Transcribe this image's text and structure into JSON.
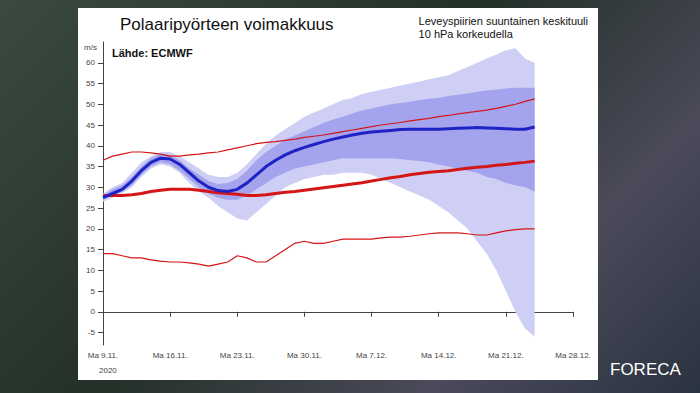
{
  "chart_data": {
    "type": "line",
    "title": "Polaaripyörteen voimakkuus",
    "subtitle": "Leveyspiirien suuntainen keskituuli\n10 hPa korkeudella",
    "annotations": {
      "source": "Lähde: ECMWF",
      "year": "2020",
      "logo": "FORECA"
    },
    "ylabel": "m/s",
    "categories": [
      "Ma 9.11.",
      null,
      null,
      null,
      null,
      null,
      null,
      "Ma 16.11.",
      null,
      null,
      null,
      null,
      null,
      null,
      "Ma 23.11.",
      null,
      null,
      null,
      null,
      null,
      null,
      "Ma 30.11.",
      null,
      null,
      null,
      null,
      null,
      null,
      "Ma 7.12.",
      null,
      null,
      null,
      null,
      null,
      null,
      "Ma 14.12.",
      null,
      null,
      null,
      null,
      null,
      null,
      "Ma 21.12.",
      null,
      null,
      null,
      null,
      null,
      null,
      "Ma 28.12."
    ],
    "ylim": [
      -8,
      65
    ],
    "yticks": [
      -5,
      0,
      5,
      10,
      15,
      20,
      25,
      30,
      35,
      40,
      45,
      50,
      55,
      60
    ],
    "grid": false,
    "series": [
      {
        "type": "band",
        "color": "#cfcff6",
        "lower": [
          26.5,
          27.5,
          28.5,
          30,
          32.5,
          34.5,
          35.5,
          35,
          33.5,
          31,
          29,
          27.5,
          25.5,
          24,
          22.5,
          22,
          24,
          26,
          28,
          30,
          31,
          32,
          32.5,
          33,
          33,
          33.5,
          33.5,
          33.5,
          33,
          32,
          31,
          30,
          29,
          28,
          27,
          25.5,
          24,
          22,
          20,
          17,
          14,
          10,
          5,
          0,
          -4,
          -6,
          null,
          null,
          null,
          null
        ],
        "upper": [
          28.5,
          30,
          31,
          33.5,
          36,
          37.5,
          38.5,
          38.5,
          37.5,
          36,
          34.5,
          33,
          32.5,
          32.5,
          33.5,
          35.5,
          38,
          40.5,
          42.5,
          44,
          45.5,
          47,
          48,
          49,
          50,
          51,
          51.5,
          52.5,
          53,
          53.5,
          54,
          54.5,
          55,
          55.5,
          56,
          56.5,
          57,
          58,
          59,
          60,
          61,
          62,
          63,
          63.5,
          61,
          60,
          null,
          null,
          null,
          null
        ]
      },
      {
        "type": "band",
        "color": "#a3a3ee",
        "lower": [
          27,
          28,
          29,
          30.5,
          33,
          35,
          36,
          35.5,
          34,
          32,
          30,
          28.5,
          27.5,
          27,
          27,
          28,
          29.5,
          31,
          32.5,
          33.5,
          34.5,
          35,
          35.5,
          36,
          36.5,
          37,
          37,
          37,
          37,
          37,
          37,
          36.8,
          36.5,
          36.3,
          36,
          35.5,
          35,
          34.5,
          34,
          33.5,
          32.5,
          32,
          31,
          30.5,
          30,
          29,
          null,
          null,
          null,
          null
        ],
        "upper": [
          28,
          29.5,
          30.5,
          32.5,
          35,
          37,
          38,
          37.8,
          36.5,
          34.5,
          33,
          31.5,
          30.8,
          31,
          32,
          34,
          36.5,
          38.5,
          40,
          41.5,
          42.5,
          43.5,
          44.5,
          45.5,
          46.3,
          47,
          47.8,
          48.5,
          49,
          49.5,
          50,
          50.3,
          50.6,
          51,
          51.3,
          51.5,
          52,
          52.3,
          52.6,
          53,
          53.3,
          53.5,
          53.8,
          54,
          54,
          54,
          null,
          null,
          null,
          null
        ]
      },
      {
        "type": "line",
        "color": "#d41616",
        "line_style": "thin",
        "values": [
          36.5,
          37.5,
          38,
          38.5,
          38.5,
          38.3,
          38,
          37.5,
          37.5,
          37.8,
          38,
          38.3,
          38.5,
          39,
          39.5,
          40,
          40.5,
          40.8,
          41,
          41.3,
          41.6,
          42,
          42.3,
          42.6,
          43,
          43.4,
          43.8,
          44.2,
          44.6,
          45,
          45.3,
          45.6,
          46,
          46.3,
          46.6,
          47,
          47.3,
          47.7,
          48,
          48.3,
          48.6,
          49,
          49.5,
          50,
          50.7,
          51.3,
          null,
          null,
          null,
          null
        ]
      },
      {
        "type": "line",
        "color": "#d41616",
        "line_style": "thin",
        "values": [
          14,
          14,
          13.5,
          13,
          13,
          12.5,
          12.2,
          12,
          12,
          11.8,
          11.5,
          11,
          11.5,
          12,
          13.5,
          13,
          12,
          12,
          13.5,
          15,
          16.5,
          17,
          16.5,
          16.5,
          17,
          17.5,
          17.5,
          17.5,
          17.5,
          17.8,
          18,
          18,
          18.2,
          18.5,
          18.8,
          19,
          19,
          19,
          18.8,
          18.5,
          18.5,
          19,
          19.5,
          19.8,
          20,
          20,
          null,
          null,
          null,
          null
        ]
      },
      {
        "type": "line",
        "color": "#d41616",
        "line_style": "thick",
        "values": [
          28,
          28,
          28,
          28.2,
          28.5,
          29,
          29.3,
          29.5,
          29.5,
          29.5,
          29.3,
          29,
          28.7,
          28.5,
          28.3,
          28,
          28,
          28.2,
          28.5,
          28.8,
          29,
          29.3,
          29.6,
          29.9,
          30.2,
          30.5,
          30.8,
          31.1,
          31.5,
          31.9,
          32.3,
          32.6,
          33,
          33.3,
          33.6,
          33.8,
          34,
          34.3,
          34.6,
          34.8,
          35,
          35.3,
          35.5,
          35.8,
          36,
          36.3,
          null,
          null,
          null,
          null
        ]
      },
      {
        "type": "line",
        "color": "#1f23c4",
        "line_style": "thick",
        "values": [
          27.5,
          28.5,
          29.5,
          31.5,
          34,
          36,
          37,
          36.8,
          35.5,
          33.5,
          31.5,
          30,
          29.2,
          29,
          29.5,
          31,
          33,
          35,
          36.5,
          37.8,
          38.8,
          39.6,
          40.3,
          41,
          41.6,
          42.1,
          42.6,
          43,
          43.3,
          43.5,
          43.7,
          43.9,
          44,
          44,
          44,
          44,
          44.1,
          44.2,
          44.3,
          44.4,
          44.3,
          44.2,
          44.1,
          44,
          44,
          44.5,
          null,
          null,
          null,
          null
        ]
      }
    ]
  }
}
